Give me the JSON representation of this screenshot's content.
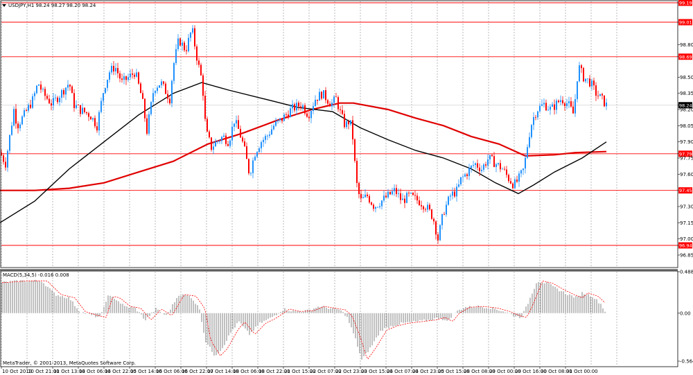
{
  "window": {
    "symbol_header": "USDJPY,H1  98.24 98.27 98.20 98.24",
    "macd_header": "MACD(5,34,5) -0.016 0.008",
    "copyright": "MetaTrader, © 2001-2013, MetaQuotes Software Corp."
  },
  "colors": {
    "background": "#ffffff",
    "bull": "#1e90ff",
    "bear": "#ff0000",
    "ma_fast": "#000000",
    "ma_slow": "#e00000",
    "level_line": "#ff0000",
    "macd_hist": "#808080",
    "macd_signal": "#ff0000",
    "grid": "#8c8c8c"
  },
  "chart_data": [
    {
      "type": "candlestick",
      "panel": "price",
      "ylim": [
        96.85,
        99.19
      ],
      "price_ticks": [
        "99.19",
        "99.01",
        "98.80",
        "98.69",
        "98.50",
        "98.35",
        "98.24",
        "98.20",
        "98.05",
        "97.90",
        "97.79",
        "97.75",
        "97.60",
        "97.45",
        "97.30",
        "97.15",
        "97.00",
        "96.94",
        "96.85"
      ],
      "highlighted_ticks": [
        "99.19",
        "99.01",
        "98.69",
        "97.79",
        "97.45",
        "96.94"
      ],
      "current_price": "98.24",
      "levels": [
        99.19,
        99.01,
        98.69,
        97.79,
        97.45,
        96.94
      ],
      "time_labels": [
        "10 Oct 2013",
        "10 Oct 21:00",
        "11 Oct 13:00",
        "14 Oct 06:00",
        "14 Oct 22:00",
        "15 Oct 14:00",
        "16 Oct 06:00",
        "16 Oct 22:00",
        "17 Oct 14:00",
        "18 Oct 06:00",
        "18 Oct 22:00",
        "21 Oct 15:00",
        "22 Oct 07:00",
        "22 Oct 23:00",
        "23 Oct 15:00",
        "24 Oct 07:00",
        "24 Oct 23:00",
        "25 Oct 15:00",
        "28 Oct 08:00",
        "29 Oct 00:00",
        "29 Oct 16:00",
        "30 Oct 08:00",
        "31 Oct 00:00"
      ],
      "path_points": [
        [
          0,
          97.8
        ],
        [
          8,
          97.7
        ],
        [
          20,
          98.2
        ],
        [
          25,
          98.05
        ],
        [
          35,
          98.15
        ],
        [
          48,
          98.3
        ],
        [
          55,
          98.45
        ],
        [
          62,
          98.35
        ],
        [
          75,
          98.25
        ],
        [
          88,
          98.35
        ],
        [
          100,
          98.45
        ],
        [
          106,
          98.25
        ],
        [
          115,
          98.2
        ],
        [
          130,
          98.15
        ],
        [
          140,
          98.05
        ],
        [
          150,
          98.4
        ],
        [
          158,
          98.55
        ],
        [
          166,
          98.6
        ],
        [
          176,
          98.45
        ],
        [
          186,
          98.5
        ],
        [
          195,
          98.55
        ],
        [
          205,
          98.3
        ],
        [
          212,
          98.0
        ],
        [
          222,
          98.4
        ],
        [
          232,
          98.45
        ],
        [
          245,
          98.3
        ],
        [
          250,
          98.6
        ],
        [
          258,
          98.85
        ],
        [
          268,
          98.75
        ],
        [
          277,
          98.95
        ],
        [
          285,
          98.65
        ],
        [
          292,
          98.45
        ],
        [
          297,
          98.0
        ],
        [
          305,
          97.85
        ],
        [
          312,
          97.9
        ],
        [
          322,
          97.95
        ],
        [
          330,
          97.9
        ],
        [
          338,
          98.1
        ],
        [
          345,
          98.0
        ],
        [
          352,
          97.85
        ],
        [
          360,
          97.6
        ],
        [
          368,
          97.8
        ],
        [
          376,
          97.9
        ],
        [
          385,
          97.95
        ],
        [
          395,
          98.05
        ],
        [
          405,
          98.1
        ],
        [
          420,
          98.2
        ],
        [
          435,
          98.25
        ],
        [
          445,
          98.15
        ],
        [
          455,
          98.3
        ],
        [
          465,
          98.35
        ],
        [
          478,
          98.25
        ],
        [
          485,
          98.3
        ],
        [
          492,
          98.15
        ],
        [
          498,
          98.05
        ],
        [
          505,
          98.1
        ],
        [
          510,
          97.9
        ],
        [
          512,
          97.7
        ],
        [
          515,
          97.5
        ],
        [
          520,
          97.35
        ],
        [
          530,
          97.4
        ],
        [
          540,
          97.3
        ],
        [
          550,
          97.35
        ],
        [
          560,
          97.4
        ],
        [
          570,
          97.45
        ],
        [
          580,
          97.35
        ],
        [
          590,
          97.4
        ],
        [
          605,
          97.35
        ],
        [
          615,
          97.3
        ],
        [
          625,
          97.2
        ],
        [
          632,
          97.0
        ],
        [
          640,
          97.25
        ],
        [
          650,
          97.4
        ],
        [
          660,
          97.45
        ],
        [
          665,
          97.55
        ],
        [
          672,
          97.6
        ],
        [
          685,
          97.7
        ],
        [
          695,
          97.65
        ],
        [
          705,
          97.75
        ],
        [
          715,
          97.7
        ],
        [
          725,
          97.65
        ],
        [
          735,
          97.55
        ],
        [
          742,
          97.5
        ],
        [
          748,
          97.55
        ],
        [
          756,
          97.65
        ],
        [
          763,
          97.95
        ],
        [
          768,
          98.1
        ],
        [
          775,
          98.2
        ],
        [
          785,
          98.25
        ],
        [
          795,
          98.2
        ],
        [
          810,
          98.3
        ],
        [
          820,
          98.25
        ],
        [
          828,
          98.15
        ],
        [
          832,
          98.45
        ],
        [
          835,
          98.6
        ],
        [
          842,
          98.5
        ],
        [
          852,
          98.45
        ],
        [
          860,
          98.35
        ],
        [
          868,
          98.3
        ],
        [
          875,
          98.24
        ]
      ],
      "ma_fast": [
        [
          0,
          97.15
        ],
        [
          50,
          97.35
        ],
        [
          100,
          97.65
        ],
        [
          150,
          97.9
        ],
        [
          200,
          98.15
        ],
        [
          250,
          98.35
        ],
        [
          291,
          98.45
        ],
        [
          330,
          98.38
        ],
        [
          380,
          98.3
        ],
        [
          430,
          98.22
        ],
        [
          480,
          98.18
        ],
        [
          520,
          98.03
        ],
        [
          560,
          97.92
        ],
        [
          600,
          97.82
        ],
        [
          640,
          97.75
        ],
        [
          680,
          97.65
        ],
        [
          715,
          97.52
        ],
        [
          748,
          97.42
        ],
        [
          770,
          97.5
        ],
        [
          800,
          97.62
        ],
        [
          840,
          97.75
        ],
        [
          875,
          97.9
        ]
      ],
      "ma_slow": [
        [
          0,
          97.45
        ],
        [
          50,
          97.45
        ],
        [
          100,
          97.47
        ],
        [
          150,
          97.52
        ],
        [
          200,
          97.62
        ],
        [
          250,
          97.72
        ],
        [
          300,
          97.88
        ],
        [
          350,
          97.98
        ],
        [
          400,
          98.1
        ],
        [
          450,
          98.2
        ],
        [
          490,
          98.26
        ],
        [
          510,
          98.26
        ],
        [
          560,
          98.2
        ],
        [
          600,
          98.12
        ],
        [
          640,
          98.05
        ],
        [
          680,
          97.95
        ],
        [
          720,
          97.88
        ],
        [
          758,
          97.77
        ],
        [
          800,
          97.78
        ],
        [
          830,
          97.8
        ],
        [
          875,
          97.81
        ]
      ]
    },
    {
      "type": "histogram",
      "panel": "MACD(5,34,5)",
      "ylim": [
        -0.564,
        0.488
      ],
      "value_ticks": [
        "0.488",
        "0.00",
        "-0.564"
      ],
      "hist_points": [
        [
          0,
          0.36
        ],
        [
          30,
          0.38
        ],
        [
          60,
          0.38
        ],
        [
          80,
          0.22
        ],
        [
          100,
          0.18
        ],
        [
          115,
          0.02
        ],
        [
          130,
          -0.02
        ],
        [
          145,
          -0.05
        ],
        [
          155,
          0.2
        ],
        [
          165,
          0.18
        ],
        [
          180,
          0.08
        ],
        [
          195,
          0.06
        ],
        [
          210,
          -0.08
        ],
        [
          225,
          0.05
        ],
        [
          240,
          -0.03
        ],
        [
          258,
          0.22
        ],
        [
          275,
          0.2
        ],
        [
          288,
          0.05
        ],
        [
          296,
          -0.32
        ],
        [
          310,
          -0.5
        ],
        [
          320,
          -0.42
        ],
        [
          335,
          -0.2
        ],
        [
          345,
          -0.1
        ],
        [
          360,
          -0.25
        ],
        [
          375,
          -0.12
        ],
        [
          390,
          -0.06
        ],
        [
          410,
          0.05
        ],
        [
          425,
          0.02
        ],
        [
          445,
          0.03
        ],
        [
          460,
          0.08
        ],
        [
          475,
          0.06
        ],
        [
          490,
          0.04
        ],
        [
          500,
          -0.03
        ],
        [
          512,
          -0.28
        ],
        [
          522,
          -0.55
        ],
        [
          535,
          -0.4
        ],
        [
          550,
          -0.2
        ],
        [
          565,
          -0.15
        ],
        [
          580,
          -0.12
        ],
        [
          600,
          -0.1
        ],
        [
          620,
          -0.08
        ],
        [
          635,
          -0.05
        ],
        [
          645,
          -0.1
        ],
        [
          655,
          0.0
        ],
        [
          670,
          0.07
        ],
        [
          690,
          0.08
        ],
        [
          710,
          0.06
        ],
        [
          728,
          0.02
        ],
        [
          742,
          -0.03
        ],
        [
          752,
          -0.05
        ],
        [
          760,
          0.08
        ],
        [
          775,
          0.38
        ],
        [
          790,
          0.35
        ],
        [
          805,
          0.28
        ],
        [
          820,
          0.22
        ],
        [
          833,
          0.18
        ],
        [
          840,
          0.24
        ],
        [
          855,
          0.2
        ],
        [
          868,
          0.1
        ],
        [
          875,
          -0.016
        ]
      ]
    }
  ]
}
